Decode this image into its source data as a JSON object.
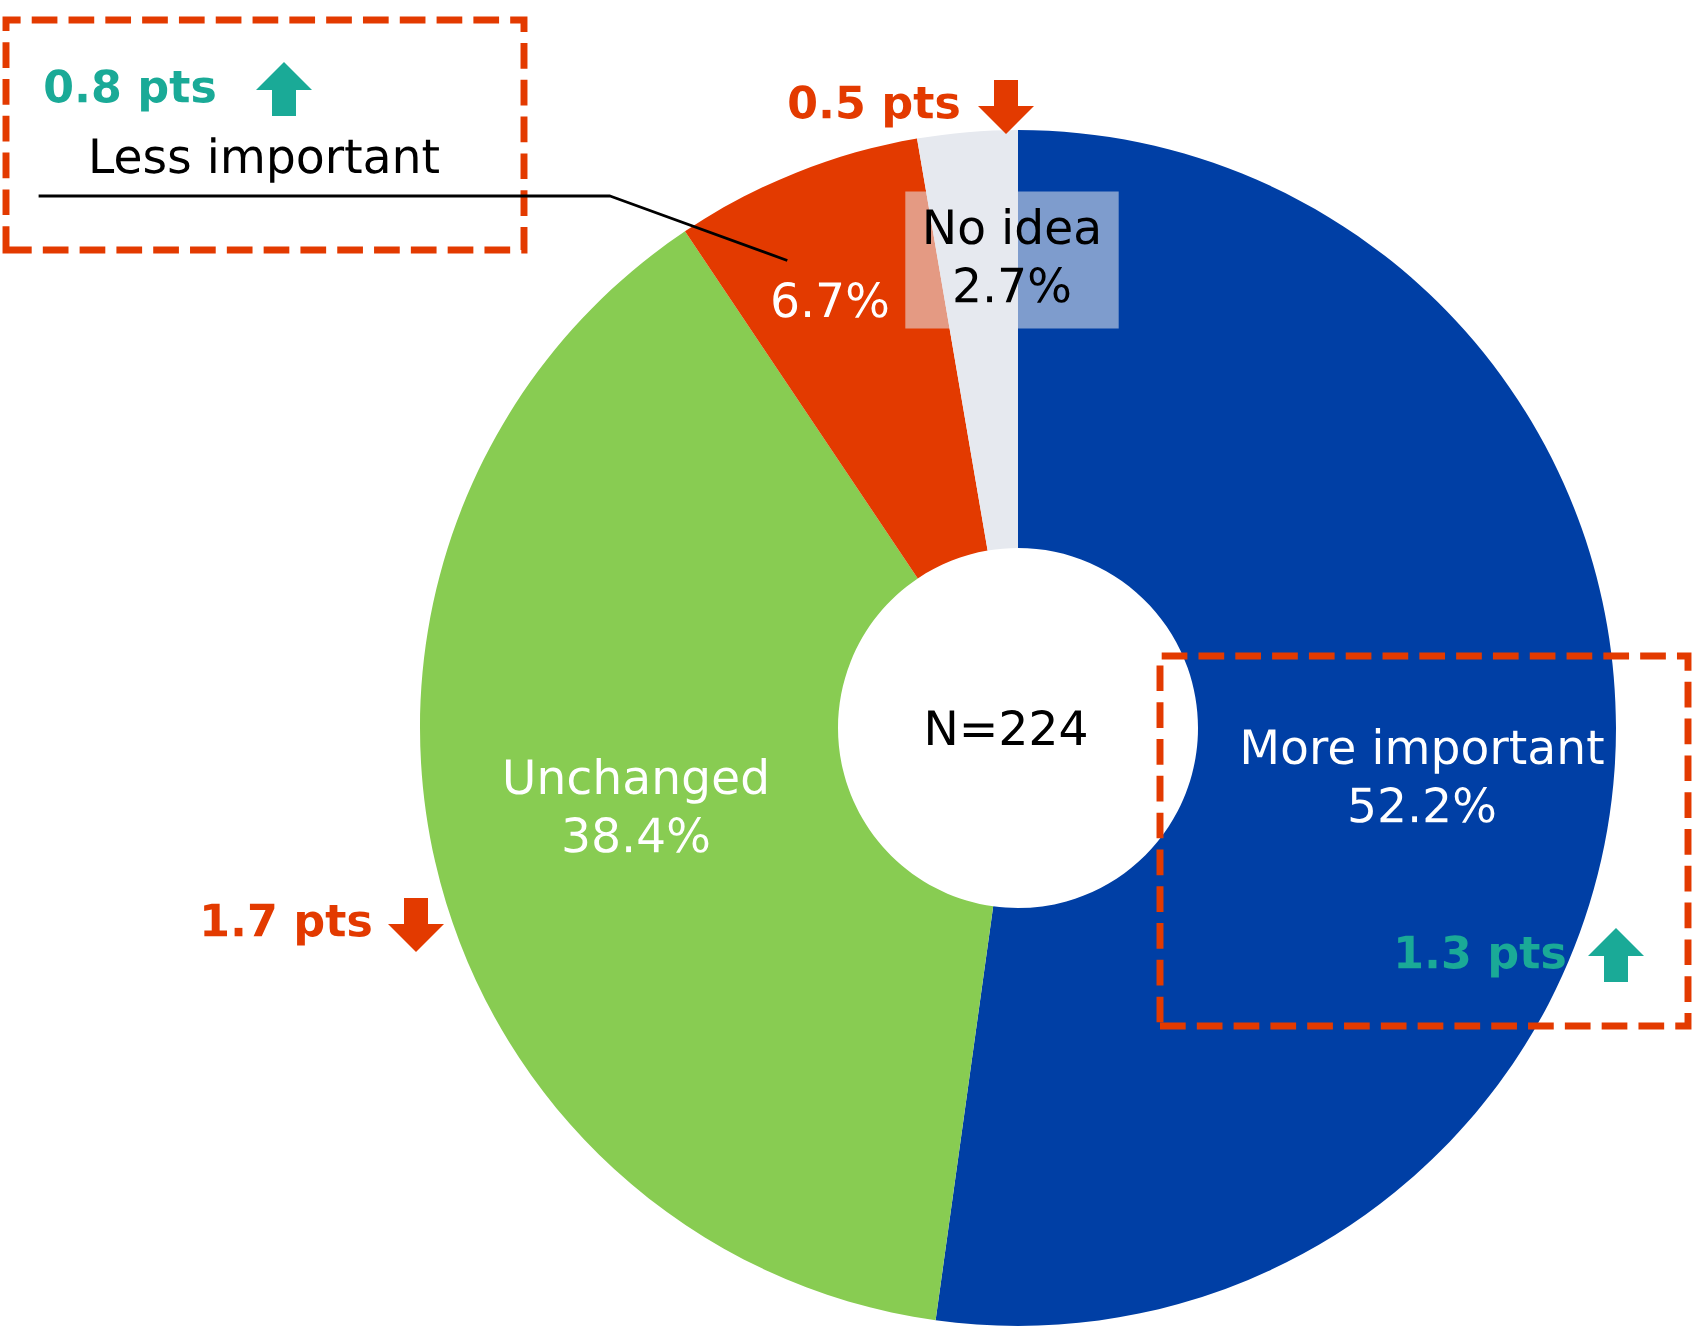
{
  "chart_data": {
    "type": "donut",
    "categories": [
      "More important",
      "Unchanged",
      "Less important",
      "No idea"
    ],
    "values": [
      52.2,
      38.4,
      6.7,
      2.7
    ],
    "value_labels": [
      "52.2%",
      "38.4%",
      "6.7%",
      "2.7%"
    ],
    "colors": [
      "#003fa5",
      "#88cc52",
      "#e33a00",
      "#e6e9ef"
    ],
    "annotations": [
      "N=224",
      "1.3 pts",
      "1.7 pts",
      "0.8 pts",
      "0.5 pts"
    ],
    "legend": false
  }
}
